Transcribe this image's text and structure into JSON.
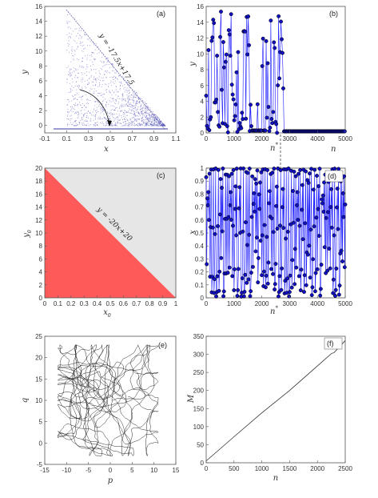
{
  "chart_data": [
    {
      "panel": "(a)",
      "type": "scatter",
      "xlabel": "x",
      "ylabel": "y",
      "xlim": [
        -0.1,
        1.1
      ],
      "ylim": [
        -1,
        16
      ],
      "xticks": [
        "-0.1",
        "0.1",
        "0.3",
        "0.5",
        "0.7",
        "0.9",
        "1.1"
      ],
      "yticks": [
        "0",
        "2",
        "4",
        "6",
        "8",
        "10",
        "12",
        "14",
        "16"
      ],
      "annotation": "y = -17.5x+17.5",
      "line": {
        "slope": -17.5,
        "intercept": 17.5
      },
      "series": [
        {
          "color": "#3a3aa8",
          "values": [],
          "description_points": "points fill the triangle bounded by x=0.1, y=0 and the line"
        }
      ]
    },
    {
      "panel": "(b)",
      "type": "line",
      "xlabel": "n",
      "ylabel": "y",
      "xlim": [
        0,
        5000
      ],
      "ylim": [
        0,
        16
      ],
      "xticks": [
        "0",
        "1000",
        "2000",
        "3000",
        "4000",
        "5000"
      ],
      "yticks": [
        "0",
        "2",
        "4",
        "6",
        "8",
        "10",
        "12",
        "14",
        "16"
      ],
      "marker_label": "n",
      "marker_sup": "*",
      "n_star": 2800,
      "color": "#1a1aff"
    },
    {
      "panel": "(c)",
      "type": "area",
      "xlabel": "x",
      "xlabel_sub": "0",
      "ylabel": "y",
      "ylabel_sub": "0",
      "xlim": [
        0,
        1
      ],
      "ylim": [
        0,
        20
      ],
      "xticks": [
        "0",
        "0.1",
        "0.2",
        "0.3",
        "0.4",
        "0.5",
        "0.6",
        "0.7",
        "0.8",
        "0.9",
        "1"
      ],
      "yticks": [
        "0",
        "2",
        "4",
        "6",
        "8",
        "10",
        "12",
        "14",
        "16",
        "18",
        "20"
      ],
      "annotation": "y = -20x+20",
      "line": {
        "slope": -20,
        "intercept": 20
      },
      "fill_below": "#ff5a5a",
      "fill_above": "#e6e6e6"
    },
    {
      "panel": "(d)",
      "type": "line",
      "xlabel": "n",
      "ylabel": "x",
      "xlim": [
        0,
        5000
      ],
      "ylim": [
        0,
        1
      ],
      "xticks": [
        "0",
        "1000",
        "2000",
        "3000",
        "4000",
        "5000"
      ],
      "yticks": [
        "0",
        "0.1",
        "0.2",
        "0.3",
        "0.4",
        "0.5",
        "0.6",
        "0.7",
        "0.8",
        "0.9",
        "1"
      ],
      "marker_label": "n",
      "marker_sup": "*",
      "n_star": 2800,
      "color": "#1a1aff"
    },
    {
      "panel": "(e)",
      "type": "line",
      "xlabel": "p",
      "ylabel": "q",
      "xlim": [
        -15,
        15
      ],
      "ylim": [
        -5,
        25
      ],
      "xticks": [
        "-15",
        "-10",
        "-5",
        "0",
        "5",
        "10",
        "15"
      ],
      "yticks": [
        "-5",
        "0",
        "5",
        "10",
        "15",
        "20",
        "25"
      ]
    },
    {
      "panel": "(f)",
      "type": "line",
      "xlabel": "n",
      "ylabel": "M",
      "xlim": [
        0,
        2500
      ],
      "ylim": [
        0,
        350
      ],
      "xticks": [
        "0",
        "500",
        "1000",
        "1500",
        "2000",
        "2500"
      ],
      "yticks": [
        "0",
        "50",
        "100",
        "150",
        "200",
        "250",
        "300",
        "350"
      ],
      "series": [
        {
          "x": [
            0,
            500,
            1000,
            1500,
            2000,
            2250,
            2300,
            2500
          ],
          "values": [
            5,
            72,
            138,
            200,
            268,
            302,
            305,
            338
          ]
        }
      ]
    }
  ]
}
